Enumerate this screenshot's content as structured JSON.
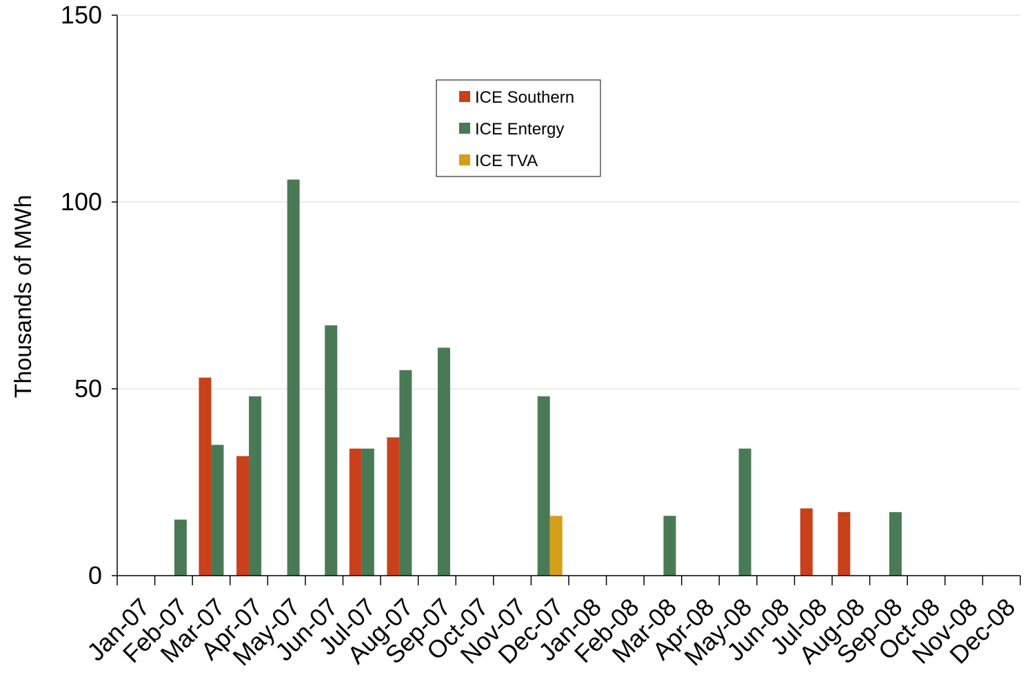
{
  "chart_data": {
    "type": "bar",
    "title": "",
    "xlabel": "",
    "ylabel": "Thousands of MWh",
    "ylim": [
      0,
      150
    ],
    "yticks": [
      0,
      50,
      100,
      150
    ],
    "grid": true,
    "legend_position": "top-center",
    "categories": [
      "Jan-07",
      "Feb-07",
      "Mar-07",
      "Apr-07",
      "May-07",
      "Jun-07",
      "Jul-07",
      "Aug-07",
      "Sep-07",
      "Oct-07",
      "Nov-07",
      "Dec-07",
      "Jan-08",
      "Feb-08",
      "Mar-08",
      "Apr-08",
      "May-08",
      "Jun-08",
      "Jul-08",
      "Aug-08",
      "Sep-08",
      "Oct-08",
      "Nov-08",
      "Dec-08"
    ],
    "series": [
      {
        "name": "ICE Southern",
        "color": "#C8411B",
        "values": [
          0,
          0,
          53,
          32,
          0,
          0,
          34,
          37,
          0,
          0,
          0,
          0,
          0,
          0,
          0,
          0,
          0,
          0,
          18,
          17,
          0,
          0,
          0,
          0
        ]
      },
      {
        "name": "ICE Entergy",
        "color": "#4A7A55",
        "values": [
          0,
          15,
          35,
          48,
          106,
          67,
          34,
          55,
          61,
          0,
          0,
          48,
          0,
          0,
          16,
          0,
          34,
          0,
          0,
          0,
          17,
          0,
          0,
          0
        ]
      },
      {
        "name": "ICE TVA",
        "color": "#D4A019",
        "values": [
          0,
          0,
          0,
          0,
          0,
          0,
          0,
          0,
          0,
          0,
          0,
          16,
          0,
          0,
          0,
          0,
          0,
          0,
          0,
          0,
          0,
          0,
          0,
          0
        ]
      }
    ]
  }
}
